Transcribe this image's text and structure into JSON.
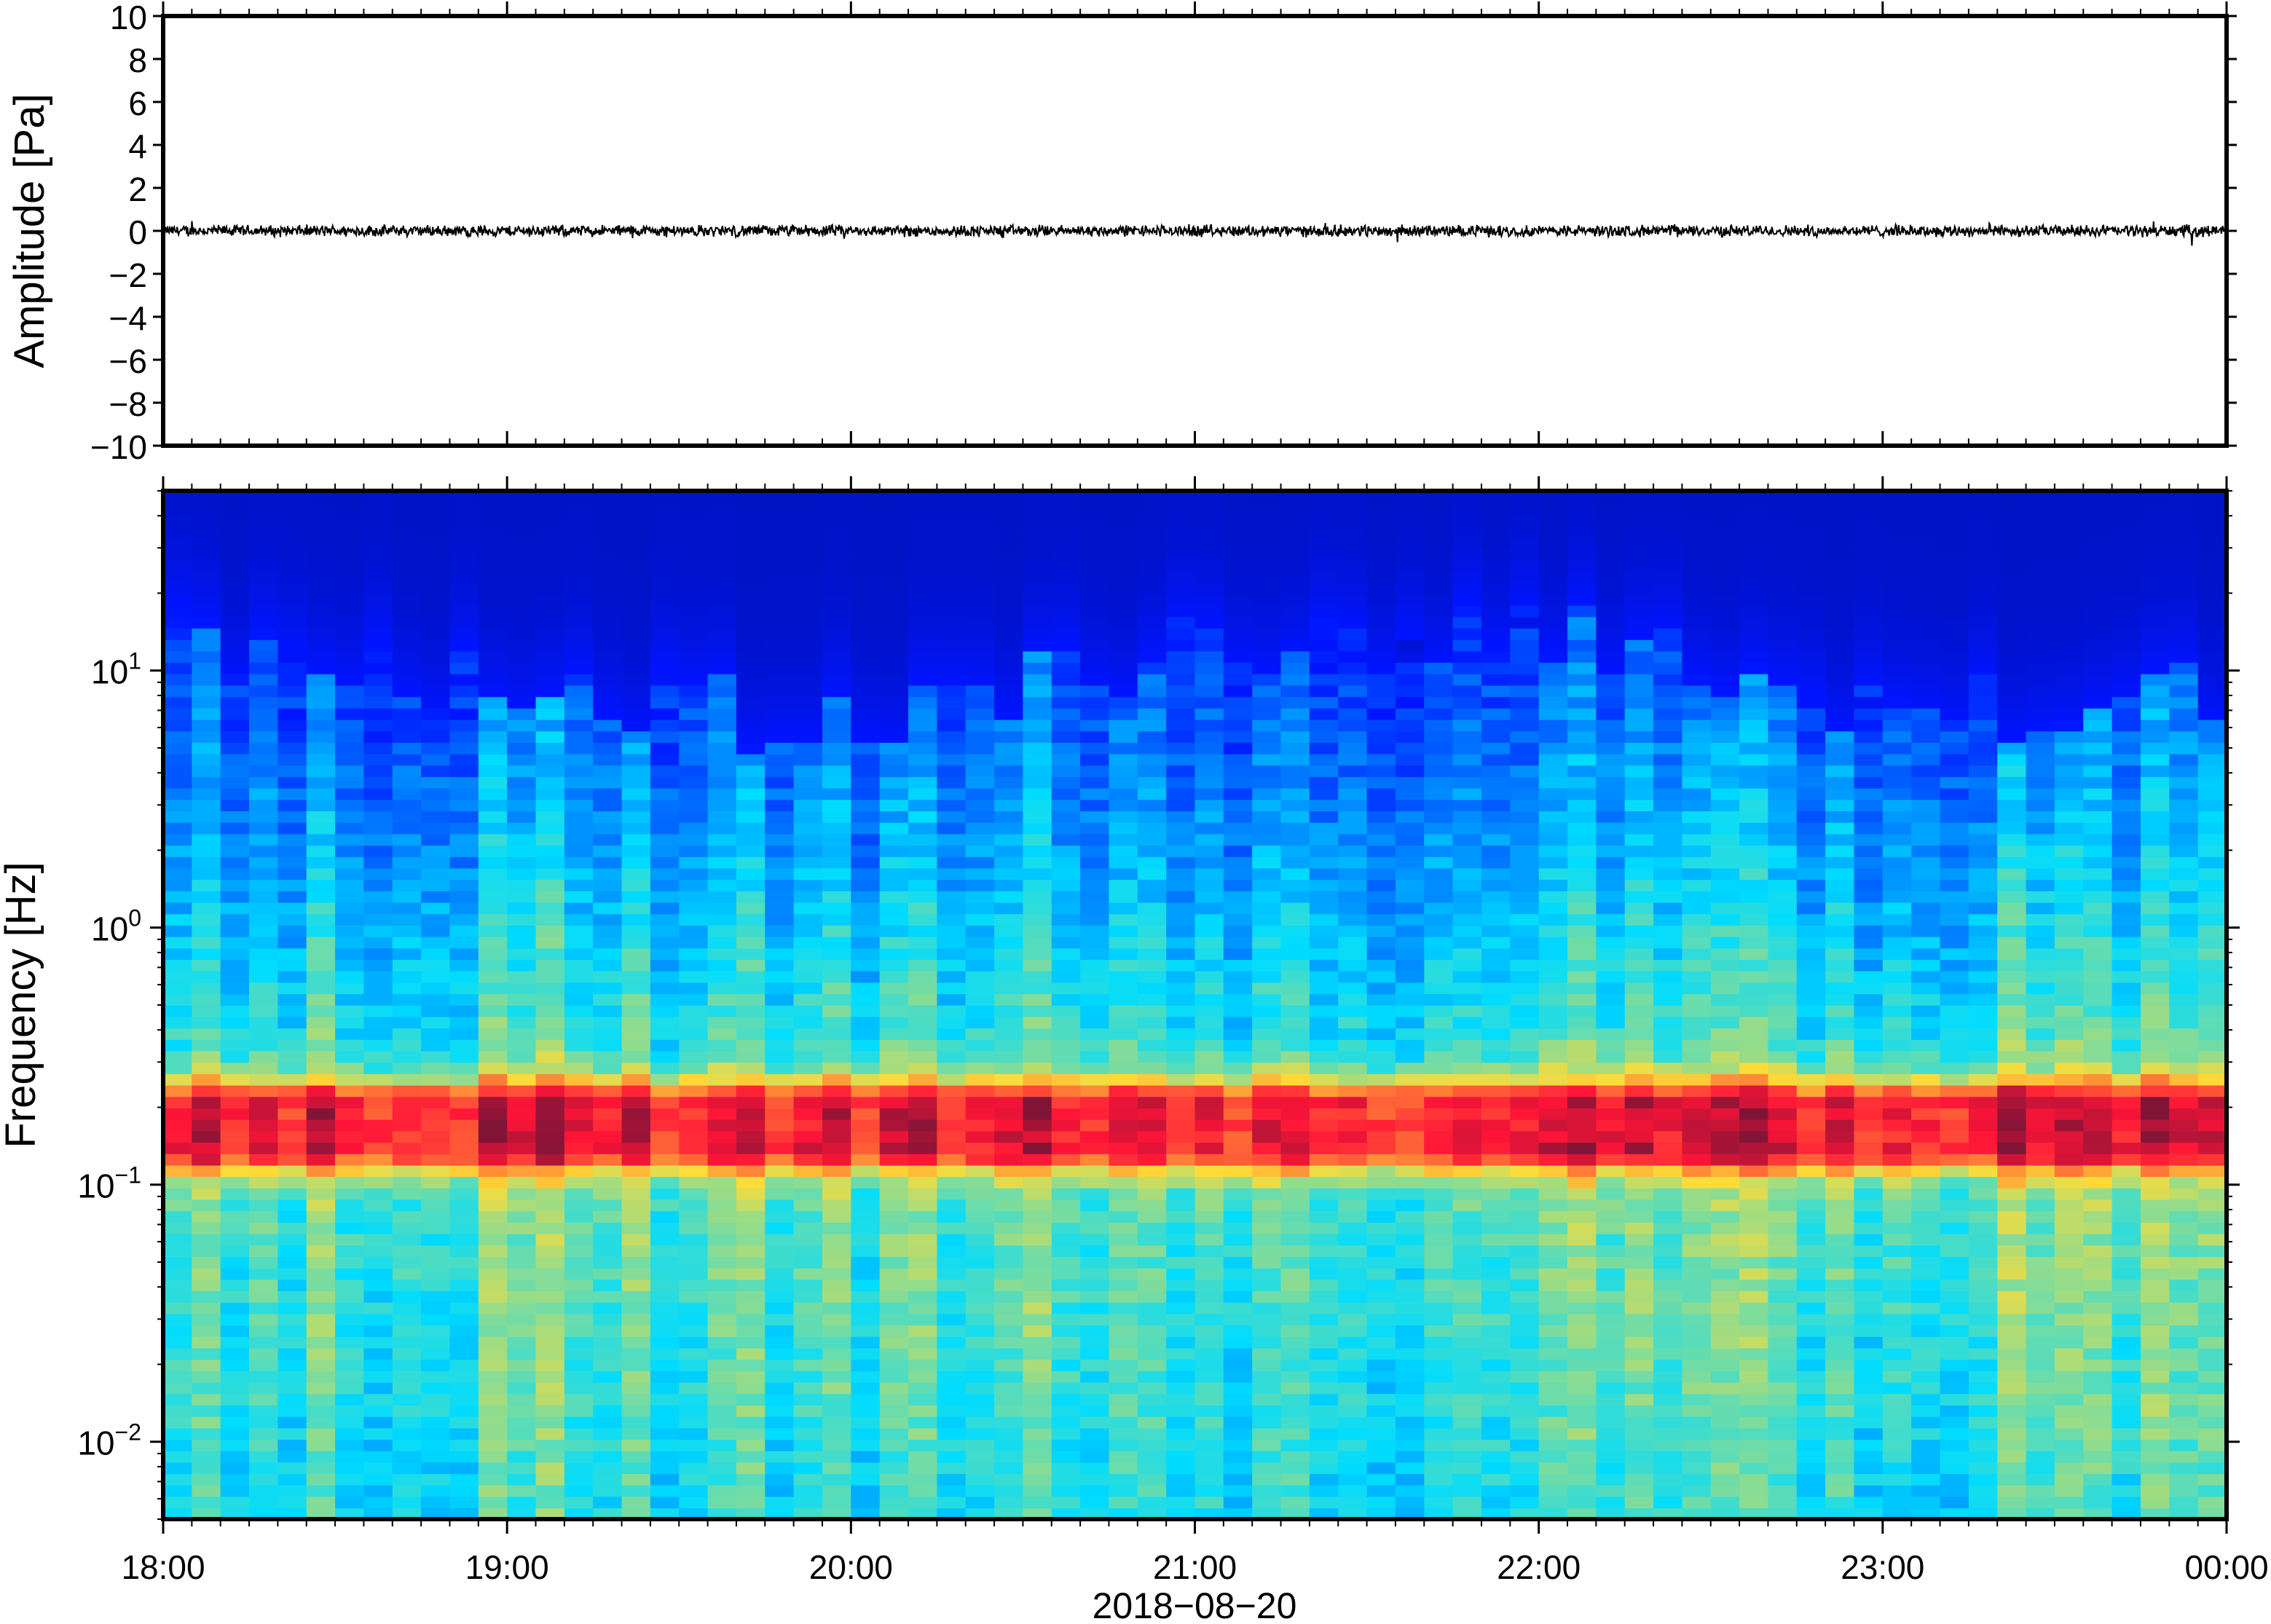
{
  "chart_data": [
    {
      "type": "line",
      "title": "",
      "ylabel": "Amplitude [Pa]",
      "xlabel": "",
      "ylim": [
        -10,
        10
      ],
      "yticks": [
        10,
        8,
        6,
        4,
        2,
        0,
        -2,
        -4,
        -6,
        -8,
        -10
      ],
      "ytick_labels": [
        "10",
        "8",
        "6",
        "4",
        "2",
        "0",
        "−2",
        "−4",
        "−6",
        "−8",
        "−10"
      ],
      "series": [
        {
          "values_description_hours": [
            18,
            19,
            20,
            21,
            22,
            23,
            24
          ],
          "mean": 0.0,
          "typical_abs": 0.2,
          "peaks": [
            {
              "time": "18:12",
              "value": -0.5
            },
            {
              "time": "20:03",
              "value": 0.4
            },
            {
              "time": "21:15",
              "value": 0.6
            },
            {
              "time": "21:40",
              "value": 0.4
            },
            {
              "time": "22:10",
              "value": -0.4
            }
          ]
        }
      ],
      "grid": false
    },
    {
      "type": "heatmap",
      "title": "",
      "ylabel": "Frequency [Hz]",
      "xlabel": "2018−08−20",
      "y_scale": "log",
      "ylim": [
        0.005,
        50
      ],
      "yticks": [
        0.01,
        0.1,
        1,
        10
      ],
      "ytick_bases": [
        "10",
        "10",
        "10",
        "10"
      ],
      "ytick_exponents": [
        "−2",
        "−1",
        "0",
        "1"
      ],
      "colormap": "jet",
      "dominant_band_hz": 0.17,
      "columns_per_hour": 12,
      "upper_cutoff_hz_by_hour": [
        {
          "time": "18:00",
          "hz": 12
        },
        {
          "time": "19:00",
          "hz": 9
        },
        {
          "time": "20:00",
          "hz": 5
        },
        {
          "time": "21:00",
          "hz": 12
        },
        {
          "time": "22:00",
          "hz": 13
        },
        {
          "time": "23:00",
          "hz": 6
        },
        {
          "time": "00:00",
          "hz": 8
        }
      ]
    }
  ],
  "x_axis": {
    "ticks": [
      "18:00",
      "19:00",
      "20:00",
      "21:00",
      "22:00",
      "23:00",
      "00:00"
    ],
    "date_label": "2018−08−20"
  },
  "colors": {
    "frame": "#000000",
    "trace": "#000000",
    "background": "#ffffff"
  }
}
